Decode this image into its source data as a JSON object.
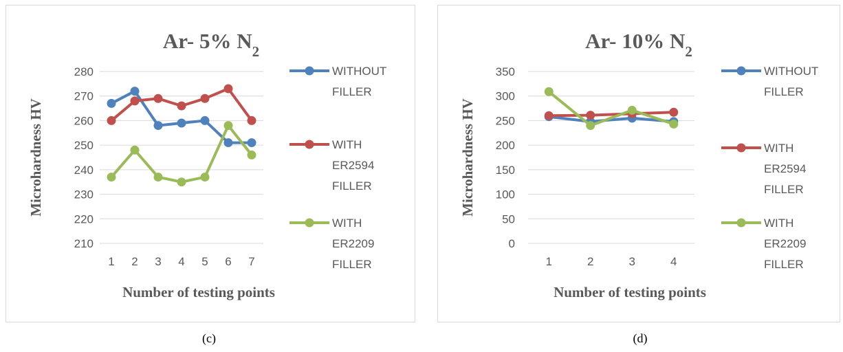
{
  "chart_data": [
    {
      "type": "line",
      "panel_label": "(c)",
      "title_main": "Ar- 5% N",
      "title_sub": "2",
      "xlabel": "Number of testing points",
      "ylabel": "Microhardness HV",
      "categories": [
        "1",
        "2",
        "3",
        "4",
        "5",
        "6",
        "7"
      ],
      "ylim": [
        210,
        280
      ],
      "yticks": [
        210,
        220,
        230,
        240,
        250,
        260,
        270,
        280
      ],
      "grid": true,
      "legend_position": "right",
      "series": [
        {
          "name_lines": [
            "WITHOUT",
            "FILLER"
          ],
          "color": "#4f81bd",
          "values": [
            267,
            272,
            258,
            259,
            260,
            251,
            251
          ]
        },
        {
          "name_lines": [
            "WITH",
            "ER2594",
            "FILLER"
          ],
          "color": "#c0504d",
          "values": [
            260,
            268,
            269,
            266,
            269,
            273,
            260
          ]
        },
        {
          "name_lines": [
            "WITH",
            "ER2209",
            "FILLER"
          ],
          "color": "#9bbb59",
          "values": [
            237,
            248,
            237,
            235,
            237,
            258,
            246
          ]
        }
      ]
    },
    {
      "type": "line",
      "panel_label": "(d)",
      "title_main": "Ar- 10% N",
      "title_sub": "2",
      "xlabel": "Number of testing points",
      "ylabel": "Microhardness HV",
      "categories": [
        "1",
        "2",
        "3",
        "4"
      ],
      "ylim": [
        0,
        350
      ],
      "yticks": [
        0,
        50,
        100,
        150,
        200,
        250,
        300,
        350
      ],
      "grid": true,
      "legend_position": "right",
      "series": [
        {
          "name_lines": [
            "WITHOUT",
            "FILLER"
          ],
          "color": "#4f81bd",
          "values": [
            258,
            248,
            255,
            248
          ]
        },
        {
          "name_lines": [
            "WITH",
            "ER2594",
            "FILLER"
          ],
          "color": "#c0504d",
          "values": [
            260,
            261,
            264,
            267
          ]
        },
        {
          "name_lines": [
            "WITH",
            "ER2209",
            "FILLER"
          ],
          "color": "#9bbb59",
          "values": [
            309,
            240,
            271,
            243
          ]
        }
      ]
    }
  ]
}
